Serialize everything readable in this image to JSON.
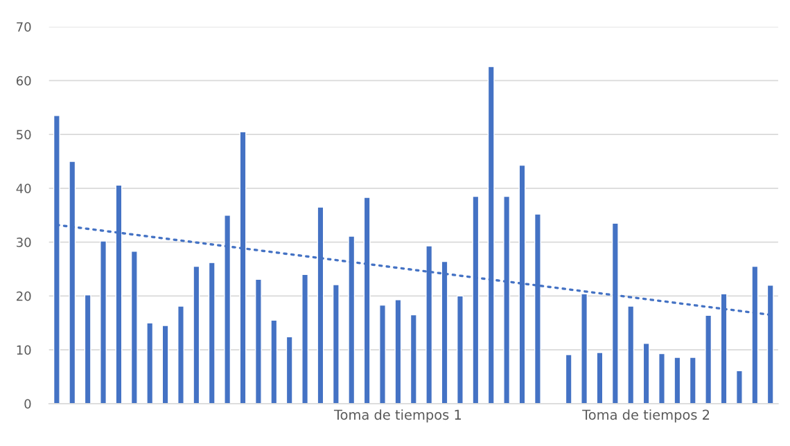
{
  "chart_data": {
    "type": "bar",
    "categories": [
      null,
      null,
      null,
      null,
      null,
      null,
      null,
      null,
      null,
      null,
      null,
      null,
      null,
      null,
      null,
      null,
      null,
      null,
      null,
      null,
      null,
      null,
      "Toma de tiempos 1",
      null,
      null,
      null,
      null,
      null,
      null,
      null,
      null,
      null,
      null,
      null,
      null,
      null,
      null,
      null,
      "Toma de tiempos 2",
      null,
      null,
      null,
      null,
      null,
      null,
      null,
      null
    ],
    "series": [
      {
        "color": "#4472c4",
        "values": [
          53.5,
          45,
          20.2,
          30.2,
          40.6,
          28.3,
          15,
          14.5,
          18.1,
          25.5,
          26.2,
          35,
          50.5,
          23.1,
          15.5,
          12.4,
          24,
          36.5,
          22.1,
          31.1,
          38.3,
          18.3,
          19.3,
          16.5,
          29.3,
          26.4,
          20,
          38.5,
          62.6,
          38.5,
          44.3,
          35.2,
          null,
          9.1,
          20.4,
          9.5,
          33.5,
          18.1,
          11.2,
          9.3,
          8.6,
          8.6,
          16.4,
          20.4,
          6.1,
          25.5,
          22
        ]
      },
      {
        "type": "line",
        "color": "#4472c4",
        "line_style": "dotted",
        "values": [
          33.2,
          null,
          null,
          null,
          null,
          null,
          null,
          null,
          null,
          null,
          null,
          null,
          null,
          null,
          null,
          null,
          null,
          null,
          null,
          null,
          null,
          null,
          null,
          null,
          null,
          null,
          null,
          null,
          null,
          null,
          null,
          null,
          null,
          null,
          null,
          null,
          null,
          null,
          null,
          null,
          null,
          null,
          null,
          null,
          null,
          null,
          16.5
        ]
      }
    ],
    "ylim": [
      0,
      70
    ],
    "yticks": [
      0,
      10,
      20,
      30,
      40,
      50,
      60,
      70
    ],
    "grid": "y"
  }
}
